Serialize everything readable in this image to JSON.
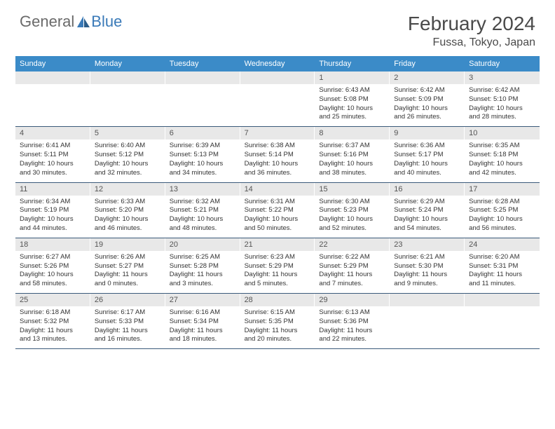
{
  "logo": {
    "general": "General",
    "blue": "Blue"
  },
  "colors": {
    "header_band": "#3b8bc8",
    "daynum_band": "#e8e8e8",
    "week_divider": "#3b5a7a",
    "logo_blue": "#3a7ab8",
    "logo_gray": "#6a6a6a",
    "text": "#4a4a4a"
  },
  "title": "February 2024",
  "location": "Fussa, Tokyo, Japan",
  "days_of_week": [
    "Sunday",
    "Monday",
    "Tuesday",
    "Wednesday",
    "Thursday",
    "Friday",
    "Saturday"
  ],
  "weeks": [
    {
      "nums": [
        "",
        "",
        "",
        "",
        "1",
        "2",
        "3"
      ],
      "cells": [
        {
          "empty": true
        },
        {
          "empty": true
        },
        {
          "empty": true
        },
        {
          "empty": true
        },
        {
          "sunrise": "Sunrise: 6:43 AM",
          "sunset": "Sunset: 5:08 PM",
          "d1": "Daylight: 10 hours",
          "d2": "and 25 minutes."
        },
        {
          "sunrise": "Sunrise: 6:42 AM",
          "sunset": "Sunset: 5:09 PM",
          "d1": "Daylight: 10 hours",
          "d2": "and 26 minutes."
        },
        {
          "sunrise": "Sunrise: 6:42 AM",
          "sunset": "Sunset: 5:10 PM",
          "d1": "Daylight: 10 hours",
          "d2": "and 28 minutes."
        }
      ]
    },
    {
      "nums": [
        "4",
        "5",
        "6",
        "7",
        "8",
        "9",
        "10"
      ],
      "cells": [
        {
          "sunrise": "Sunrise: 6:41 AM",
          "sunset": "Sunset: 5:11 PM",
          "d1": "Daylight: 10 hours",
          "d2": "and 30 minutes."
        },
        {
          "sunrise": "Sunrise: 6:40 AM",
          "sunset": "Sunset: 5:12 PM",
          "d1": "Daylight: 10 hours",
          "d2": "and 32 minutes."
        },
        {
          "sunrise": "Sunrise: 6:39 AM",
          "sunset": "Sunset: 5:13 PM",
          "d1": "Daylight: 10 hours",
          "d2": "and 34 minutes."
        },
        {
          "sunrise": "Sunrise: 6:38 AM",
          "sunset": "Sunset: 5:14 PM",
          "d1": "Daylight: 10 hours",
          "d2": "and 36 minutes."
        },
        {
          "sunrise": "Sunrise: 6:37 AM",
          "sunset": "Sunset: 5:16 PM",
          "d1": "Daylight: 10 hours",
          "d2": "and 38 minutes."
        },
        {
          "sunrise": "Sunrise: 6:36 AM",
          "sunset": "Sunset: 5:17 PM",
          "d1": "Daylight: 10 hours",
          "d2": "and 40 minutes."
        },
        {
          "sunrise": "Sunrise: 6:35 AM",
          "sunset": "Sunset: 5:18 PM",
          "d1": "Daylight: 10 hours",
          "d2": "and 42 minutes."
        }
      ]
    },
    {
      "nums": [
        "11",
        "12",
        "13",
        "14",
        "15",
        "16",
        "17"
      ],
      "cells": [
        {
          "sunrise": "Sunrise: 6:34 AM",
          "sunset": "Sunset: 5:19 PM",
          "d1": "Daylight: 10 hours",
          "d2": "and 44 minutes."
        },
        {
          "sunrise": "Sunrise: 6:33 AM",
          "sunset": "Sunset: 5:20 PM",
          "d1": "Daylight: 10 hours",
          "d2": "and 46 minutes."
        },
        {
          "sunrise": "Sunrise: 6:32 AM",
          "sunset": "Sunset: 5:21 PM",
          "d1": "Daylight: 10 hours",
          "d2": "and 48 minutes."
        },
        {
          "sunrise": "Sunrise: 6:31 AM",
          "sunset": "Sunset: 5:22 PM",
          "d1": "Daylight: 10 hours",
          "d2": "and 50 minutes."
        },
        {
          "sunrise": "Sunrise: 6:30 AM",
          "sunset": "Sunset: 5:23 PM",
          "d1": "Daylight: 10 hours",
          "d2": "and 52 minutes."
        },
        {
          "sunrise": "Sunrise: 6:29 AM",
          "sunset": "Sunset: 5:24 PM",
          "d1": "Daylight: 10 hours",
          "d2": "and 54 minutes."
        },
        {
          "sunrise": "Sunrise: 6:28 AM",
          "sunset": "Sunset: 5:25 PM",
          "d1": "Daylight: 10 hours",
          "d2": "and 56 minutes."
        }
      ]
    },
    {
      "nums": [
        "18",
        "19",
        "20",
        "21",
        "22",
        "23",
        "24"
      ],
      "cells": [
        {
          "sunrise": "Sunrise: 6:27 AM",
          "sunset": "Sunset: 5:26 PM",
          "d1": "Daylight: 10 hours",
          "d2": "and 58 minutes."
        },
        {
          "sunrise": "Sunrise: 6:26 AM",
          "sunset": "Sunset: 5:27 PM",
          "d1": "Daylight: 11 hours",
          "d2": "and 0 minutes."
        },
        {
          "sunrise": "Sunrise: 6:25 AM",
          "sunset": "Sunset: 5:28 PM",
          "d1": "Daylight: 11 hours",
          "d2": "and 3 minutes."
        },
        {
          "sunrise": "Sunrise: 6:23 AM",
          "sunset": "Sunset: 5:29 PM",
          "d1": "Daylight: 11 hours",
          "d2": "and 5 minutes."
        },
        {
          "sunrise": "Sunrise: 6:22 AM",
          "sunset": "Sunset: 5:29 PM",
          "d1": "Daylight: 11 hours",
          "d2": "and 7 minutes."
        },
        {
          "sunrise": "Sunrise: 6:21 AM",
          "sunset": "Sunset: 5:30 PM",
          "d1": "Daylight: 11 hours",
          "d2": "and 9 minutes."
        },
        {
          "sunrise": "Sunrise: 6:20 AM",
          "sunset": "Sunset: 5:31 PM",
          "d1": "Daylight: 11 hours",
          "d2": "and 11 minutes."
        }
      ]
    },
    {
      "nums": [
        "25",
        "26",
        "27",
        "28",
        "29",
        "",
        ""
      ],
      "cells": [
        {
          "sunrise": "Sunrise: 6:18 AM",
          "sunset": "Sunset: 5:32 PM",
          "d1": "Daylight: 11 hours",
          "d2": "and 13 minutes."
        },
        {
          "sunrise": "Sunrise: 6:17 AM",
          "sunset": "Sunset: 5:33 PM",
          "d1": "Daylight: 11 hours",
          "d2": "and 16 minutes."
        },
        {
          "sunrise": "Sunrise: 6:16 AM",
          "sunset": "Sunset: 5:34 PM",
          "d1": "Daylight: 11 hours",
          "d2": "and 18 minutes."
        },
        {
          "sunrise": "Sunrise: 6:15 AM",
          "sunset": "Sunset: 5:35 PM",
          "d1": "Daylight: 11 hours",
          "d2": "and 20 minutes."
        },
        {
          "sunrise": "Sunrise: 6:13 AM",
          "sunset": "Sunset: 5:36 PM",
          "d1": "Daylight: 11 hours",
          "d2": "and 22 minutes."
        },
        {
          "empty": true
        },
        {
          "empty": true
        }
      ]
    }
  ]
}
